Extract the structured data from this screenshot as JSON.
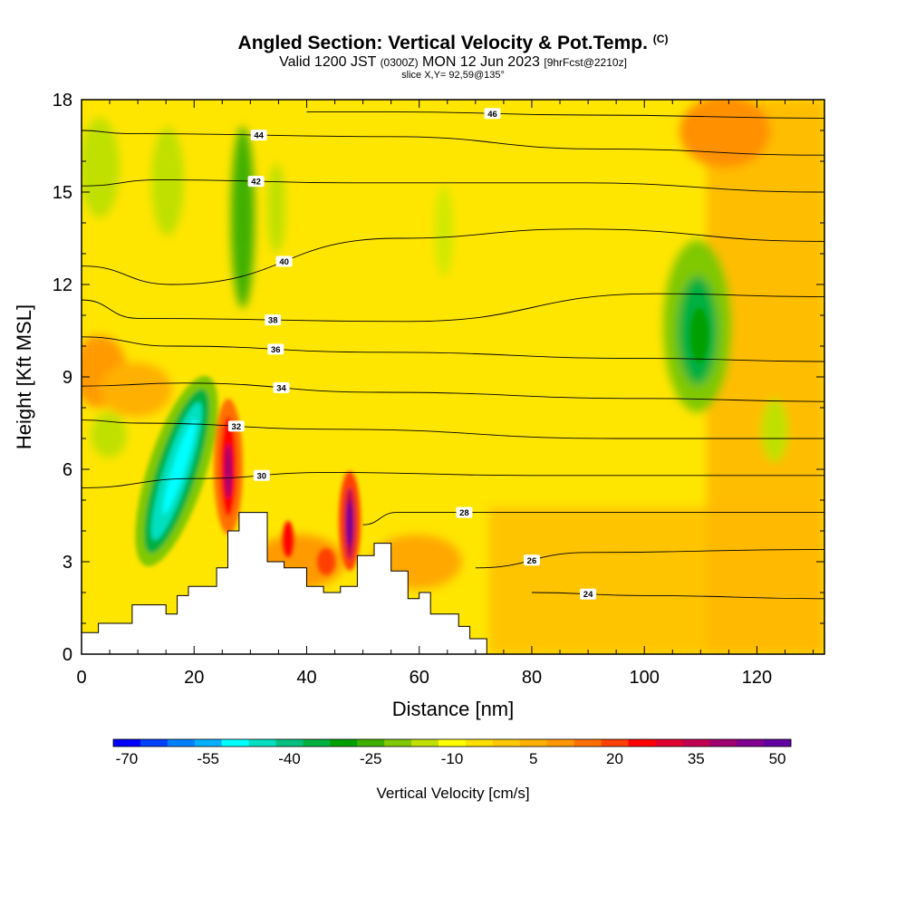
{
  "header": {
    "title_main": "Angled Section: Vertical Velocity & Pot.Temp.",
    "title_units": "(C)",
    "valid_prefix": "Valid 1200 JST",
    "valid_utc": "(0300Z)",
    "valid_date": "MON 12 Jun 2023",
    "valid_fcst": "[9hrFcst@2210z]",
    "slice": "slice X,Y= 92,59@135°"
  },
  "chart_data": {
    "type": "heatmap",
    "xlabel": "Distance [nm]",
    "ylabel": "Height [Kft MSL]",
    "xlim": [
      0,
      132
    ],
    "ylim": [
      0,
      18
    ],
    "x_ticks": [
      0,
      20,
      40,
      60,
      80,
      100,
      120
    ],
    "y_ticks": [
      0,
      3,
      6,
      9,
      12,
      15,
      18
    ],
    "colorbar": {
      "label": "Vertical Velocity [cm/s]",
      "min": -70,
      "max": 55,
      "step": 5,
      "tick_labels": [
        -70,
        -55,
        -40,
        -25,
        -10,
        5,
        20,
        35,
        50
      ],
      "colors": [
        "#0000ff",
        "#0040ff",
        "#0080ff",
        "#00b0ff",
        "#00ffff",
        "#00e0c0",
        "#00c080",
        "#00b040",
        "#00a000",
        "#40b000",
        "#80c800",
        "#c0e000",
        "#ffff00",
        "#ffe000",
        "#ffc800",
        "#ffb000",
        "#ff9800",
        "#ff7000",
        "#ff4000",
        "#ff0000",
        "#e00030",
        "#c00050",
        "#a00070",
        "#800090",
        "#6000a0"
      ]
    },
    "theta_contours": [
      {
        "label": "24",
        "x": [
          80,
          100,
          132
        ],
        "y": [
          2.0,
          1.9,
          1.8
        ]
      },
      {
        "label": "26",
        "x": [
          70,
          90,
          132
        ],
        "y": [
          2.8,
          3.3,
          3.4
        ]
      },
      {
        "label": "28",
        "x": [
          50,
          56,
          80,
          132
        ],
        "y": [
          4.2,
          4.6,
          4.6,
          4.6
        ]
      },
      {
        "label": "30",
        "x": [
          0,
          20,
          44,
          80,
          132
        ],
        "y": [
          5.4,
          5.7,
          5.9,
          5.8,
          5.8
        ]
      },
      {
        "label": "32",
        "x": [
          0,
          10,
          45,
          95,
          132
        ],
        "y": [
          7.6,
          7.5,
          7.3,
          7.0,
          7.0
        ]
      },
      {
        "label": "34",
        "x": [
          0,
          18,
          53,
          100,
          132
        ],
        "y": [
          8.7,
          8.8,
          8.5,
          8.3,
          8.2
        ]
      },
      {
        "label": "36",
        "x": [
          0,
          16,
          53,
          100,
          132
        ],
        "y": [
          10.3,
          10.0,
          9.8,
          9.6,
          9.5
        ]
      },
      {
        "label": "38",
        "x": [
          0,
          10,
          58,
          102,
          132
        ],
        "y": [
          11.5,
          10.9,
          10.8,
          11.7,
          11.6
        ]
      },
      {
        "label": "40",
        "x": [
          0,
          16,
          56,
          88,
          132
        ],
        "y": [
          12.6,
          12.0,
          13.5,
          13.8,
          13.4
        ]
      },
      {
        "label": "42",
        "x": [
          0,
          14,
          48,
          88,
          132
        ],
        "y": [
          15.2,
          15.4,
          15.3,
          15.3,
          15.0
        ]
      },
      {
        "label": "44",
        "x": [
          0,
          8,
          55,
          92,
          132
        ],
        "y": [
          17.0,
          16.9,
          16.8,
          16.4,
          16.2
        ]
      },
      {
        "label": "46",
        "x": [
          40,
          56,
          90,
          132
        ],
        "y": [
          17.6,
          17.6,
          17.5,
          17.4
        ]
      }
    ],
    "velocity_features": [
      {
        "name": "downdraft",
        "x": 18,
        "y": 6.2,
        "value": -55
      },
      {
        "name": "updraft",
        "x": 26,
        "y": 6.3,
        "value": 40
      },
      {
        "name": "updraft",
        "x": 47.5,
        "y": 4.7,
        "value": 50
      },
      {
        "name": "downdraft",
        "x": 109,
        "y": 10.5,
        "value": -25
      },
      {
        "name": "downdraft",
        "x": 29,
        "y": 14,
        "value": -25
      },
      {
        "name": "updraft",
        "x": 117,
        "y": 17.2,
        "value": 15
      }
    ],
    "terrain": {
      "x": [
        0,
        1,
        3,
        5,
        9,
        13,
        15,
        17,
        19,
        21,
        24,
        26,
        28,
        30,
        33,
        36,
        40,
        43,
        46,
        49,
        52,
        55,
        58,
        60,
        62,
        64,
        67,
        69,
        72
      ],
      "y": [
        0.7,
        0.7,
        1.0,
        1.0,
        1.6,
        1.6,
        1.3,
        1.9,
        2.2,
        2.2,
        2.8,
        4.0,
        4.6,
        4.6,
        3.0,
        2.8,
        2.2,
        2.0,
        2.2,
        3.2,
        3.6,
        2.7,
        1.8,
        2.0,
        1.3,
        1.3,
        0.9,
        0.5,
        0.3
      ]
    }
  }
}
